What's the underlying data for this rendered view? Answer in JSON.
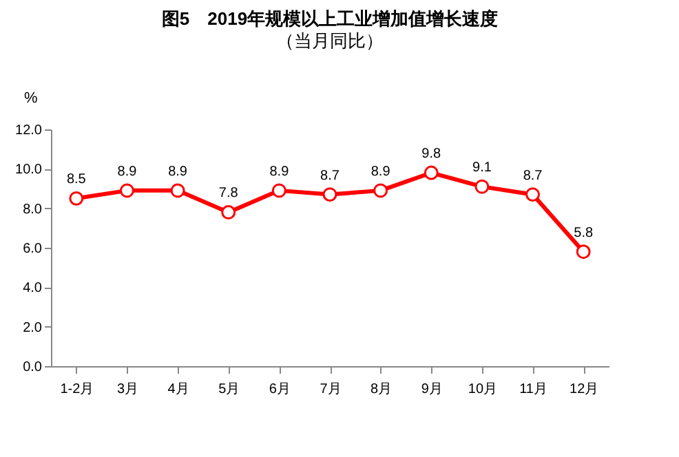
{
  "chart_data": {
    "type": "line",
    "title": "图5　2019年规模以上工业增加值增长速度",
    "subtitle": "（当月同比）",
    "ylabel": "%",
    "categories": [
      "1-2月",
      "3月",
      "4月",
      "5月",
      "6月",
      "7月",
      "8月",
      "9月",
      "10月",
      "11月",
      "12月"
    ],
    "series": [
      {
        "color": "#ff0000",
        "values": [
          8.5,
          8.9,
          8.9,
          7.8,
          8.9,
          8.7,
          8.9,
          9.8,
          9.1,
          8.7,
          5.8
        ]
      }
    ],
    "ylim": [
      0,
      12
    ],
    "yticks": [
      {
        "value": 0,
        "label": "0.0"
      },
      {
        "value": 2,
        "label": "2.0"
      },
      {
        "value": 4,
        "label": "4.0"
      },
      {
        "value": 6,
        "label": "6.0"
      },
      {
        "value": 8,
        "label": "8.0"
      },
      {
        "value": 10,
        "label": "10.0"
      },
      {
        "value": 12,
        "label": "12.0"
      }
    ],
    "data_labels": true,
    "marker": "circle",
    "line_style": "solid",
    "grid": false
  }
}
